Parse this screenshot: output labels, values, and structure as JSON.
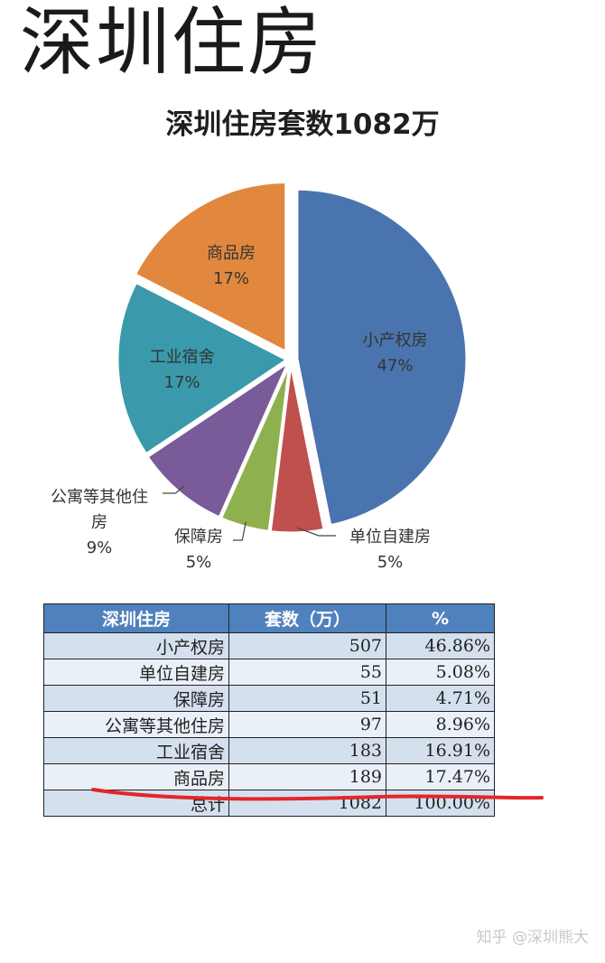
{
  "page_heading": "深圳住房",
  "watermark": "知乎 @深圳熊大",
  "chart_data": {
    "type": "pie",
    "title": "深圳住房套数1082万",
    "slices": [
      {
        "name": "小产权房",
        "pct_label": "47%",
        "value": 507,
        "color": "#4a74ad"
      },
      {
        "name": "单位自建房",
        "pct_label": "5%",
        "value": 55,
        "color": "#c0504d"
      },
      {
        "name": "保障房",
        "pct_label": "5%",
        "value": 51,
        "color": "#8fb04f"
      },
      {
        "name": "公寓等其他住房",
        "pct_label": "9%",
        "value": 97,
        "color": "#7a5b99"
      },
      {
        "name": "工业宿舍",
        "pct_label": "17%",
        "value": 183,
        "color": "#3a99ab"
      },
      {
        "name": "商品房",
        "pct_label": "17%",
        "value": 189,
        "color": "#e1883e"
      }
    ],
    "table": {
      "headers": [
        "深圳住房",
        "套数（万）",
        "%"
      ],
      "rows": [
        [
          "小产权房",
          "507",
          "46.86%"
        ],
        [
          "单位自建房",
          "55",
          "5.08%"
        ],
        [
          "保障房",
          "51",
          "4.71%"
        ],
        [
          "公寓等其他住房",
          "97",
          "8.96%"
        ],
        [
          "工业宿舍",
          "183",
          "16.91%"
        ],
        [
          "商品房",
          "189",
          "17.47%"
        ],
        [
          "总计",
          "1082",
          "100.00%"
        ]
      ]
    }
  },
  "label_parts": {
    "公寓等其他住房": [
      "公寓等其他住",
      "房"
    ]
  }
}
